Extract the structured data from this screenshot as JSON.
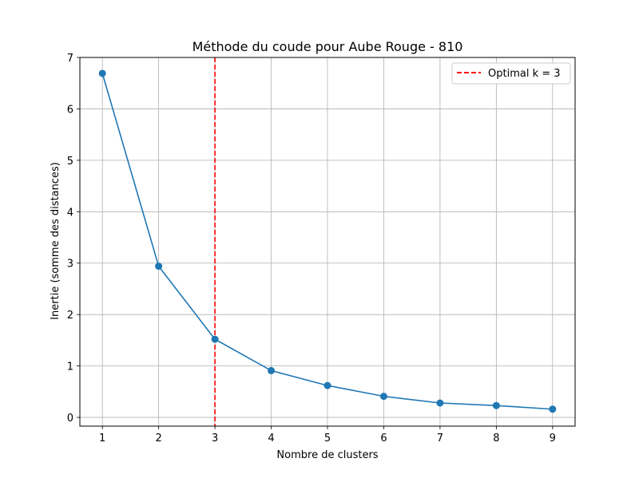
{
  "chart_data": {
    "type": "line",
    "title": "Méthode du coude pour Aube Rouge - 810",
    "xlabel": "Nombre de clusters",
    "ylabel": "Inertie (somme des distances)",
    "x": [
      1,
      2,
      3,
      4,
      5,
      6,
      7,
      8,
      9
    ],
    "series": [
      {
        "values": [
          6.69,
          2.94,
          1.52,
          0.91,
          0.62,
          0.41,
          0.28,
          0.23,
          0.16
        ],
        "color": "#1f77b4",
        "marker": "circle"
      }
    ],
    "xlim": [
      0.6,
      9.4
    ],
    "ylim": [
      -0.17,
      7.0
    ],
    "x_ticks": [
      1,
      2,
      3,
      4,
      5,
      6,
      7,
      8,
      9
    ],
    "y_ticks": [
      0,
      1,
      2,
      3,
      4,
      5,
      6,
      7
    ],
    "grid": true,
    "vline": {
      "x": 3,
      "label": "Optimal k = 3",
      "color": "#ff0000",
      "style": "dashed"
    },
    "legend": {
      "placement": "top-right",
      "entries": [
        "Optimal k = 3"
      ]
    }
  }
}
